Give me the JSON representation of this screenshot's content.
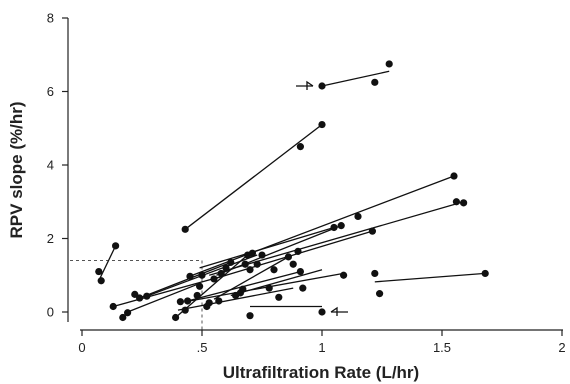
{
  "chart_data": {
    "type": "scatter",
    "xlabel": "Ultrafiltration Rate (L/hr)",
    "ylabel": "RPV slope (%/hr)",
    "xlim": [
      0,
      2
    ],
    "ylim": [
      -0.4,
      8
    ],
    "x_ticks": [
      {
        "value": 0,
        "label": "0"
      },
      {
        "value": 0.5,
        "label": ".5"
      },
      {
        "value": 1,
        "label": "1"
      },
      {
        "value": 1.5,
        "label": "1.5"
      },
      {
        "value": 2,
        "label": "2"
      }
    ],
    "y_ticks": [
      {
        "value": 0,
        "label": "0"
      },
      {
        "value": 2,
        "label": "2"
      },
      {
        "value": 4,
        "label": "4"
      },
      {
        "value": 6,
        "label": "6"
      },
      {
        "value": 8,
        "label": "8"
      }
    ],
    "points": [
      [
        0.07,
        1.1
      ],
      [
        0.08,
        0.85
      ],
      [
        0.14,
        1.8
      ],
      [
        0.13,
        0.15
      ],
      [
        0.17,
        -0.15
      ],
      [
        0.19,
        -0.02
      ],
      [
        0.22,
        0.48
      ],
      [
        0.24,
        0.38
      ],
      [
        0.27,
        0.43
      ],
      [
        0.39,
        -0.15
      ],
      [
        0.41,
        0.28
      ],
      [
        0.43,
        0.05
      ],
      [
        0.44,
        0.3
      ],
      [
        0.45,
        0.97
      ],
      [
        0.48,
        0.45
      ],
      [
        0.49,
        0.7
      ],
      [
        0.5,
        1.0
      ],
      [
        0.52,
        0.15
      ],
      [
        0.53,
        0.25
      ],
      [
        0.55,
        0.9
      ],
      [
        0.57,
        0.3
      ],
      [
        0.58,
        1.05
      ],
      [
        0.6,
        1.2
      ],
      [
        0.62,
        1.35
      ],
      [
        0.64,
        0.45
      ],
      [
        0.66,
        0.52
      ],
      [
        0.67,
        0.62
      ],
      [
        0.68,
        1.3
      ],
      [
        0.69,
        1.55
      ],
      [
        0.7,
        1.15
      ],
      [
        0.71,
        1.6
      ],
      [
        0.73,
        1.3
      ],
      [
        0.75,
        1.55
      ],
      [
        0.78,
        0.65
      ],
      [
        0.8,
        1.15
      ],
      [
        0.82,
        0.4
      ],
      [
        0.86,
        1.5
      ],
      [
        0.88,
        1.3
      ],
      [
        0.9,
        1.65
      ],
      [
        0.91,
        1.1
      ],
      [
        0.92,
        0.65
      ],
      [
        0.43,
        2.25
      ],
      [
        0.91,
        4.5
      ],
      [
        1.0,
        5.1
      ],
      [
        1.0,
        6.15
      ],
      [
        1.22,
        6.25
      ],
      [
        1.28,
        6.75
      ],
      [
        1.05,
        2.3
      ],
      [
        1.08,
        2.35
      ],
      [
        1.15,
        2.6
      ],
      [
        1.21,
        2.2
      ],
      [
        1.09,
        1.0
      ],
      [
        1.22,
        1.05
      ],
      [
        1.24,
        0.5
      ],
      [
        1.55,
        3.7
      ],
      [
        1.56,
        3.0
      ],
      [
        1.59,
        2.97
      ],
      [
        1.68,
        1.05
      ],
      [
        0.7,
        -0.1
      ],
      [
        1.0,
        0.0
      ]
    ],
    "lines": [
      [
        [
          0.07,
          0.85
        ],
        [
          0.14,
          1.8
        ]
      ],
      [
        [
          0.43,
          2.25
        ],
        [
          1.0,
          5.1
        ]
      ],
      [
        [
          1.0,
          6.15
        ],
        [
          1.28,
          6.55
        ]
      ],
      [
        [
          0.46,
          1.0
        ],
        [
          1.55,
          3.7
        ]
      ],
      [
        [
          0.53,
          1.0
        ],
        [
          1.59,
          3.0
        ]
      ],
      [
        [
          0.55,
          0.9
        ],
        [
          1.21,
          2.2
        ]
      ],
      [
        [
          0.49,
          1.2
        ],
        [
          1.05,
          2.3
        ]
      ],
      [
        [
          0.56,
          1.0
        ],
        [
          1.08,
          2.35
        ]
      ],
      [
        [
          0.13,
          0.15
        ],
        [
          0.6,
          1.0
        ]
      ],
      [
        [
          0.19,
          0.0
        ],
        [
          0.48,
          0.75
        ]
      ],
      [
        [
          0.24,
          0.38
        ],
        [
          0.62,
          1.35
        ]
      ],
      [
        [
          0.27,
          0.43
        ],
        [
          0.73,
          1.55
        ]
      ],
      [
        [
          0.39,
          -0.15
        ],
        [
          0.69,
          1.55
        ]
      ],
      [
        [
          0.44,
          0.3
        ],
        [
          0.91,
          1.1
        ]
      ],
      [
        [
          0.55,
          0.35
        ],
        [
          0.86,
          1.5
        ]
      ],
      [
        [
          0.43,
          0.28
        ],
        [
          1.09,
          1.05
        ]
      ],
      [
        [
          0.4,
          0.05
        ],
        [
          0.88,
          0.65
        ]
      ],
      [
        [
          0.62,
          0.45
        ],
        [
          1.0,
          1.15
        ]
      ],
      [
        [
          0.7,
          0.15
        ],
        [
          1.0,
          0.15
        ]
      ],
      [
        [
          1.22,
          0.82
        ],
        [
          1.68,
          1.05
        ]
      ]
    ],
    "reference_lines": {
      "x": 0.5,
      "y": 1.4
    },
    "annotations": [
      {
        "type": "arrow",
        "direction": "right",
        "target": [
          1.0,
          6.15
        ]
      },
      {
        "type": "arrow",
        "direction": "left",
        "target": [
          1.0,
          0.0
        ]
      }
    ]
  }
}
